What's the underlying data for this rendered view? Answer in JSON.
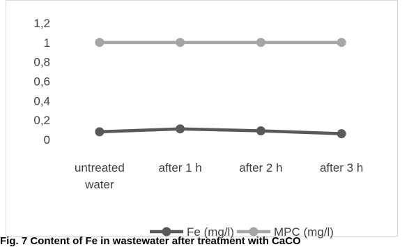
{
  "chart_data": {
    "type": "line",
    "categories": [
      [
        "untreated",
        "water"
      ],
      [
        "after 1 h"
      ],
      [
        "after 2 h"
      ],
      [
        "after 3 h"
      ]
    ],
    "series": [
      {
        "name": "Fe (mg/l)",
        "values": [
          0.08,
          0.11,
          0.09,
          0.06
        ],
        "color": "#595959"
      },
      {
        "name": "MPC (mg/l)",
        "values": [
          1,
          1,
          1,
          1
        ],
        "color": "#a6a6a6"
      }
    ],
    "yticks": [
      "0",
      "0,2",
      "0,4",
      "0,6",
      "0,8",
      "1",
      "1,2"
    ],
    "ylim": [
      0,
      1.2
    ],
    "grid": false,
    "legend_position": "bottom"
  },
  "caption": "Fig. 7 Content of Fe in wastewater after treatment with CaCO"
}
